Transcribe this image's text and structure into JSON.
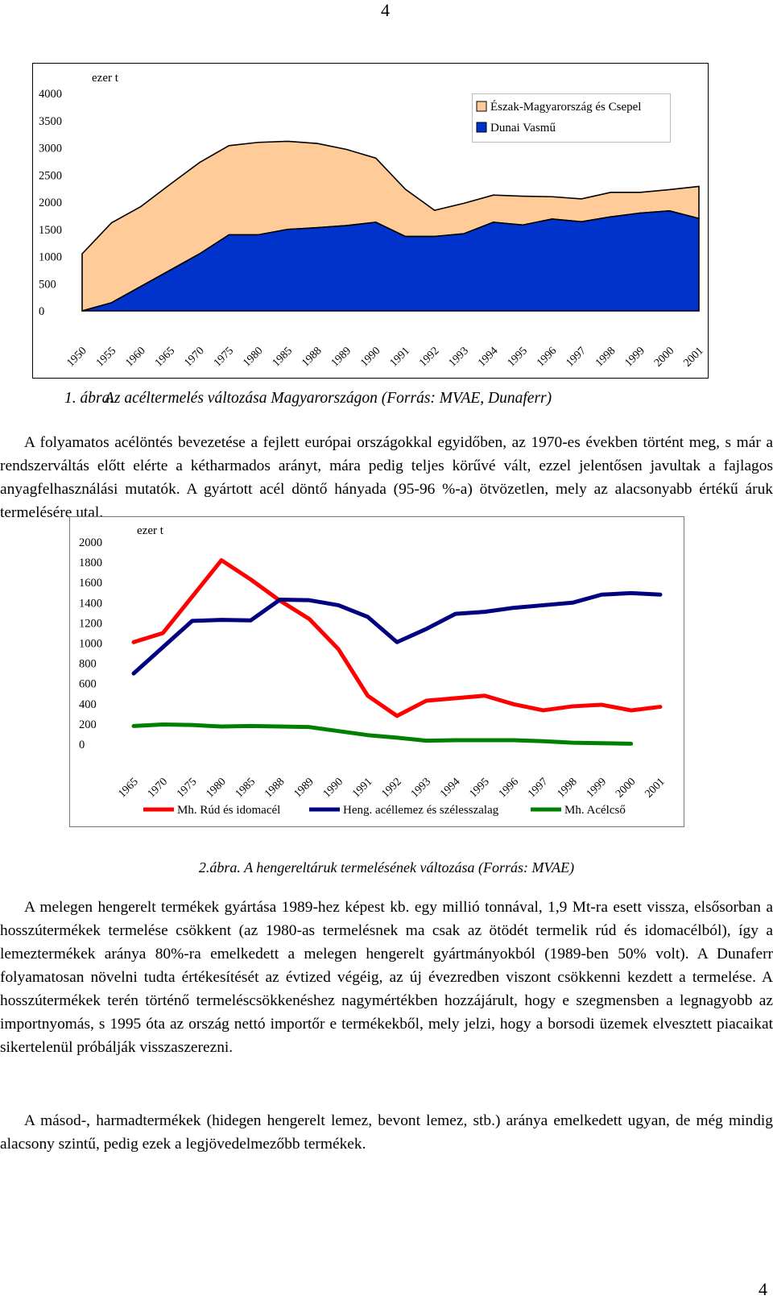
{
  "page": {
    "number_top": "4",
    "number_bottom": "4"
  },
  "figure1": {
    "caption_number": "1. ábra.",
    "caption_text": "Az acéltermelés változása Magyarországon (Forrás: MVAE, Dunaferr)"
  },
  "figure2": {
    "caption_number": "2.ábra.",
    "caption_text": "A hengereltáruk termelésének változása (Forrás: MVAE)"
  },
  "paragraphs": [
    "A folyamatos acélöntés bevezetése a fejlett európai országokkal egyidőben, az 1970-es években történt meg, s már a rendszerváltás előtt elérte a kétharmados arányt, mára pedig teljes körűvé vált, ezzel jelentősen javultak a fajlagos anyagfelhasználási mutatók. A gyártott acél döntő hányada (95-96 %-a) ötvözetlen, mely az alacsonyabb értékű áruk termelésére utal.",
    "A melegen hengerelt termékek gyártása 1989-hez képest kb. egy millió tonnával, 1,9 Mt-ra esett vissza, elsősorban a hosszútermékek termelése csökkent (az 1980-as termelésnek ma csak az ötödét termelik rúd és idomacélból), így a lemeztermékek aránya 80%-ra emelkedett a melegen hengerelt gyártmányokból (1989-ben 50% volt). A Dunaferr folyamatosan növelni tudta értékesítését az évtized végéig, az új évezredben viszont csökkenni kezdett a termelése. A hosszútermékek terén történő termeléscsökkenéshez nagymértékben hozzájárult, hogy e szegmensben a legnagyobb az importnyomás, s 1995 óta az ország nettó importőr e termékekből, mely jelzi, hogy a borsodi üzemek elvesztett piacaikat sikertelenül próbálják visszaszerezni.",
    "A másod-, harmadtermékek (hidegen hengerelt lemez, bevont lemez, stb.) aránya emelkedett ugyan, de még mindig alacsony szintű, pedig ezek a legjövedelmezőbb termékek."
  ],
  "chart_data": [
    {
      "type": "area",
      "title": "",
      "unit_label": "ezer t",
      "xlabel": "",
      "ylabel": "",
      "ylim": [
        0,
        4000
      ],
      "yticks": [
        "0",
        "500",
        "1000",
        "1500",
        "2000",
        "2500",
        "3000",
        "3500",
        "4000"
      ],
      "categories": [
        "1950",
        "1955",
        "1960",
        "1965",
        "1970",
        "1975",
        "1980",
        "1985",
        "1988",
        "1989",
        "1990",
        "1991",
        "1992",
        "1993",
        "1994",
        "1995",
        "1996",
        "1997",
        "1998",
        "1999",
        "2000",
        "2001"
      ],
      "stacked": true,
      "legend_position": "top-right",
      "series": [
        {
          "name": "Dunai Vasmű",
          "color": "#0033cc",
          "values": [
            0,
            150,
            450,
            750,
            1050,
            1400,
            1400,
            1500,
            1530,
            1570,
            1630,
            1370,
            1370,
            1420,
            1630,
            1580,
            1690,
            1640,
            1730,
            1800,
            1840,
            1700
          ]
        },
        {
          "name": "Észak-Magyarország és Csepel",
          "color": "#ffcc99",
          "values": [
            1050,
            1470,
            1470,
            1580,
            1680,
            1640,
            1700,
            1620,
            1550,
            1400,
            1180,
            870,
            480,
            560,
            500,
            530,
            410,
            420,
            450,
            380,
            390,
            590
          ]
        }
      ],
      "grid": false
    },
    {
      "type": "line",
      "title": "",
      "unit_label": "ezer t",
      "xlabel": "",
      "ylabel": "",
      "ylim": [
        0,
        2000
      ],
      "yticks": [
        "0",
        "200",
        "400",
        "600",
        "800",
        "1000",
        "1200",
        "1400",
        "1600",
        "1800",
        "2000"
      ],
      "categories": [
        "1965",
        "1970",
        "1975",
        "1980",
        "1985",
        "1988",
        "1989",
        "1990",
        "1991",
        "1992",
        "1993",
        "1994",
        "1995",
        "1996",
        "1997",
        "1998",
        "1999",
        "2000",
        "2001"
      ],
      "legend_position": "bottom",
      "series": [
        {
          "name": "Mh. Rúd és idomacél",
          "color": "#ff0000",
          "values": [
            1010,
            1100,
            1460,
            1820,
            1630,
            1420,
            1240,
            940,
            480,
            280,
            430,
            455,
            480,
            395,
            335,
            375,
            390,
            335,
            370
          ]
        },
        {
          "name": "Heng. acéllemez és szélesszalag",
          "color": "#000080",
          "values": [
            700,
            960,
            1220,
            1230,
            1225,
            1430,
            1425,
            1375,
            1260,
            1010,
            1140,
            1290,
            1310,
            1350,
            1375,
            1400,
            1480,
            1495,
            1480
          ]
        },
        {
          "name": "Mh. Acélcső",
          "color": "#008000",
          "values": [
            180,
            195,
            190,
            175,
            180,
            175,
            170,
            130,
            90,
            65,
            35,
            40,
            40,
            40,
            30,
            15,
            10,
            5,
            null
          ]
        }
      ],
      "grid": false
    }
  ]
}
